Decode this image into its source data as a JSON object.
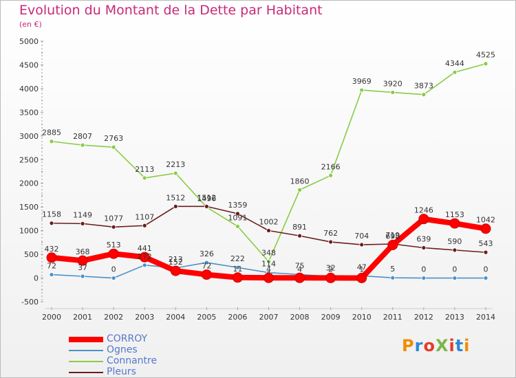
{
  "header": {
    "title": "Evolution du Montant de la Dette par Habitant",
    "subtitle": "(en €)"
  },
  "logo": {
    "text": "ProXiti",
    "colors": [
      "#f28c00",
      "#2a8ad4",
      "#e23c28",
      "#7ab648",
      "#e23c28",
      "#2a8ad4",
      "#f28c00"
    ]
  },
  "chart_data": {
    "type": "line",
    "x": [
      "2000",
      "2001",
      "2002",
      "2003",
      "2004",
      "2005",
      "2006",
      "2007",
      "2008",
      "2009",
      "2010",
      "2011",
      "2012",
      "2013",
      "2014"
    ],
    "ylim": [
      -500,
      5000
    ],
    "yticks": [
      -500,
      0,
      500,
      1000,
      1500,
      2000,
      2500,
      3000,
      3500,
      4000,
      4500,
      5000
    ],
    "ytick_labels": [
      "-500",
      "0",
      "500",
      "1000",
      "1500",
      "2000",
      "2500",
      "3000",
      "3500",
      "4000",
      "4500",
      "5000"
    ],
    "legend_position": "bottom-left",
    "series": [
      {
        "name": "CORROY",
        "color": "#ff0000",
        "values": [
          432,
          368,
          513,
          441,
          152,
          72,
          11,
          4,
          4,
          2,
          1,
          698,
          1246,
          1153,
          1042
        ],
        "labels": [
          "432",
          "368",
          "513",
          "441",
          "152",
          "72",
          "11",
          "4",
          "4",
          "2",
          "1",
          "698",
          "1246",
          "1153",
          "1042"
        ]
      },
      {
        "name": "Ognes",
        "color": "#4a90c8",
        "values": [
          72,
          37,
          0,
          272,
          213,
          326,
          222,
          114,
          75,
          32,
          47,
          5,
          0,
          0,
          0
        ],
        "labels": [
          "72",
          "37",
          "0",
          "272",
          "213",
          "326",
          "222",
          "114",
          "75",
          "32",
          "47",
          "5",
          "0",
          "0",
          "0"
        ]
      },
      {
        "name": "Connantre",
        "color": "#88cc44",
        "values": [
          2885,
          2807,
          2763,
          2113,
          2213,
          1496,
          1091,
          348,
          1860,
          2166,
          3969,
          3920,
          3873,
          4344,
          4525
        ],
        "labels": [
          "2885",
          "2807",
          "2763",
          "2113",
          "2213",
          "1496",
          "1091",
          "348",
          "1860",
          "2166",
          "3969",
          "3920",
          "3873",
          "4344",
          "4525"
        ]
      },
      {
        "name": "Pleurs",
        "color": "#6b1c1c",
        "values": [
          1158,
          1149,
          1077,
          1107,
          1512,
          1512,
          1359,
          1002,
          891,
          762,
          704,
          719,
          639,
          590,
          543
        ],
        "labels": [
          "1158",
          "1149",
          "1077",
          "1107",
          "1512",
          "1512",
          "1359",
          "1002",
          "891",
          "762",
          "704",
          "719",
          "639",
          "590",
          "543"
        ]
      }
    ]
  }
}
